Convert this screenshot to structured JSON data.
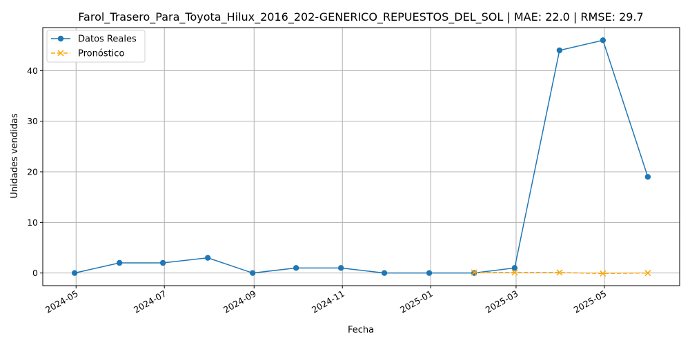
{
  "chart_data": {
    "type": "line",
    "title": "Farol_Trasero_Para_Toyota_Hilux_2016_202-GENERICO_REPUESTOS_DEL_SOL | MAE: 22.0 | RMSE: 29.7",
    "xlabel": "Fecha",
    "ylabel": "Unidades vendidas",
    "xlim": [
      "2024-04-08",
      "2025-06-22"
    ],
    "ylim": [
      -2.5,
      48.5
    ],
    "x_ticks": [
      "2024-05",
      "2024-07",
      "2024-09",
      "2024-11",
      "2025-01",
      "2025-03",
      "2025-05"
    ],
    "y_ticks": [
      0,
      10,
      20,
      30,
      40
    ],
    "grid": true,
    "legend_position": "top-left",
    "series": [
      {
        "name": "Datos Reales",
        "color": "#1f77b4",
        "line_style": "solid",
        "marker": "circle",
        "x": [
          "2024-04-30",
          "2024-05-31",
          "2024-06-30",
          "2024-07-31",
          "2024-08-31",
          "2024-09-30",
          "2024-10-31",
          "2024-11-30",
          "2024-12-31",
          "2025-01-31",
          "2025-02-28",
          "2025-03-31",
          "2025-04-30",
          "2025-05-31"
        ],
        "values": [
          0,
          2,
          2,
          3,
          0,
          1,
          1,
          0,
          0,
          0,
          1,
          44,
          46,
          19
        ]
      },
      {
        "name": "Pronóstico",
        "color": "#ffa500",
        "line_style": "dashed",
        "marker": "x",
        "x": [
          "2025-01-31",
          "2025-02-28",
          "2025-03-31",
          "2025-04-30",
          "2025-05-31"
        ],
        "values": [
          0.1,
          0.1,
          0.1,
          -0.1,
          0
        ]
      }
    ]
  }
}
